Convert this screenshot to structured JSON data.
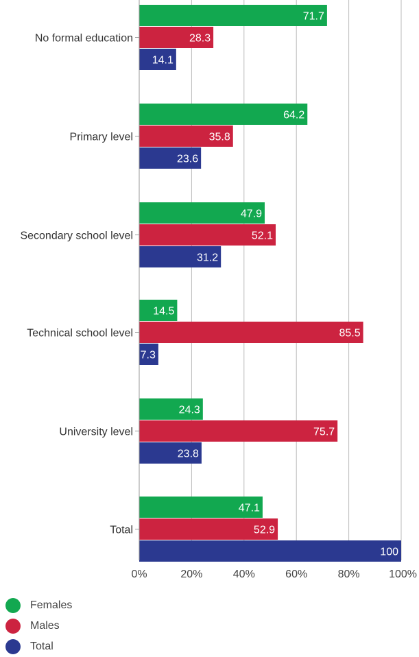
{
  "chart_data": {
    "type": "bar",
    "orientation": "horizontal",
    "categories": [
      "No formal education",
      "Primary level",
      "Secondary school level",
      "Technical school level",
      "University level",
      "Total"
    ],
    "series": [
      {
        "name": "Females",
        "color": "#12a850",
        "values": [
          71.7,
          64.2,
          47.9,
          14.5,
          24.3,
          47.1
        ]
      },
      {
        "name": "Males",
        "color": "#cc2340",
        "values": [
          28.3,
          35.8,
          52.1,
          85.5,
          75.7,
          52.9
        ]
      },
      {
        "name": "Total",
        "color": "#2b3990",
        "values": [
          14.1,
          23.6,
          31.2,
          7.3,
          23.8,
          100
        ]
      }
    ],
    "xlim": [
      0,
      100
    ],
    "xticks": [
      "0%",
      "20%",
      "40%",
      "60%",
      "80%",
      "100%"
    ],
    "grid": true,
    "legend_position": "bottom-left"
  }
}
